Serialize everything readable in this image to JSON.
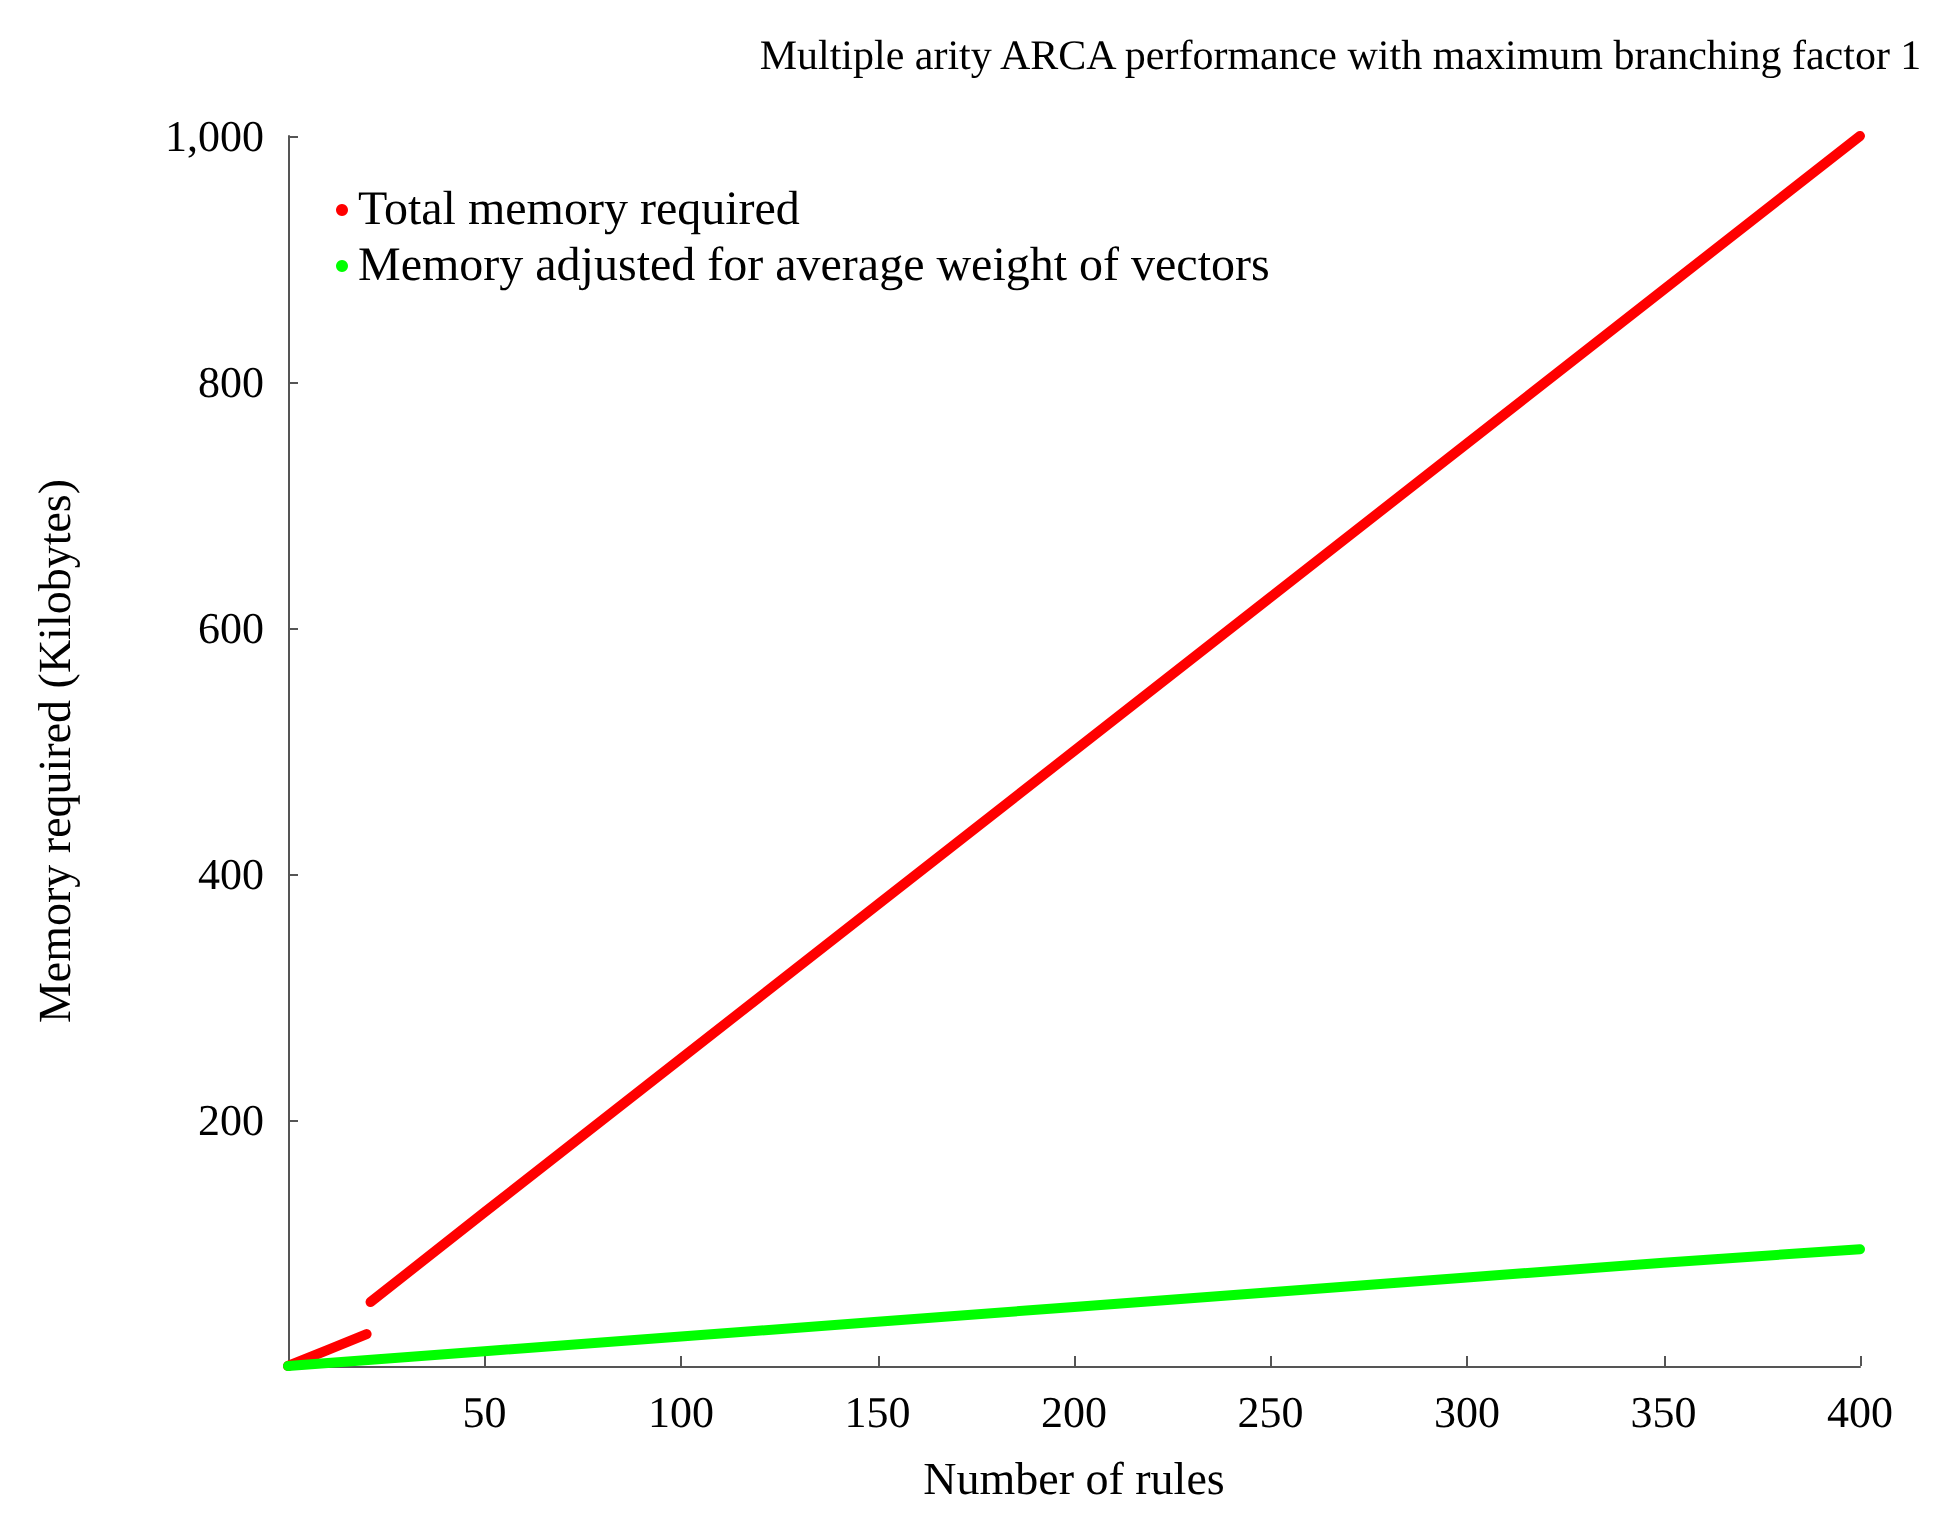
{
  "chart_data": {
    "type": "line",
    "title": "Multiple arity ARCA performance with maximum branching factor 1",
    "xlabel": "Number of rules",
    "ylabel": "Memory required (Kilobytes)",
    "xlim": [
      0,
      400
    ],
    "xticks": [
      50,
      100,
      150,
      200,
      250,
      300,
      350,
      400
    ],
    "ylim": [
      0,
      1000
    ],
    "yticks": [
      200,
      400,
      600,
      800,
      {
        "value": 1000,
        "label": "1,000"
      }
    ],
    "grid": false,
    "legend": "top left",
    "marker": "none",
    "line_style": "solid",
    "series": [
      {
        "name": "Total memory required",
        "color": "#ff0000",
        "x": [
          0,
          10,
          20,
          20.5,
          21,
          50,
          100,
          150,
          200,
          250,
          300,
          350,
          400
        ],
        "values": [
          0,
          13,
          26,
          null,
          52,
          125,
          250,
          375,
          500,
          625,
          750,
          875,
          1000
        ]
      },
      {
        "name": "Memory adjusted for average weight of vectors",
        "color": "#00ff00",
        "x": [
          0,
          50,
          100,
          150,
          200,
          250,
          300,
          350,
          400
        ],
        "values": [
          0,
          12,
          24,
          36,
          48,
          60,
          72,
          84,
          95
        ]
      }
    ]
  }
}
